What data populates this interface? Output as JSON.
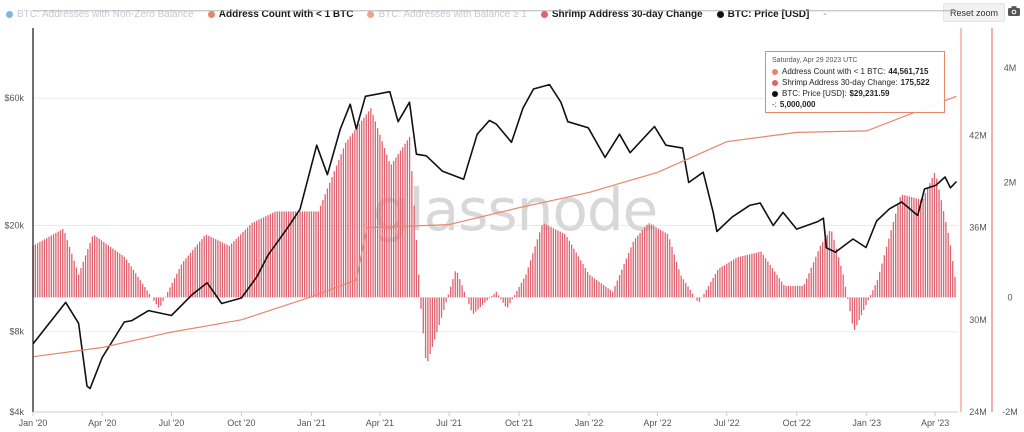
{
  "legend": [
    {
      "label": "BTC: Addresses with Non-Zero Balance",
      "color": "#7cb5ec",
      "active": false
    },
    {
      "label": "Address Count with < 1 BTC",
      "color": "#e8866c",
      "active": true
    },
    {
      "label": "BTC: Addresses with Balance ≥ 1",
      "color": "#f4a08a",
      "active": false
    },
    {
      "label": "Shrimp Address 30-day Change",
      "color": "#e0606e",
      "active": true
    },
    {
      "label": "BTC: Price [USD]",
      "color": "#111111",
      "active": true
    }
  ],
  "legend_extra": "-",
  "reset_zoom": "Reset zoom",
  "watermark": "glassnode",
  "tooltip": {
    "date": "Saturday, Apr 29 2023 UTC",
    "rows": [
      {
        "label": "Address Count with < 1 BTC:",
        "value": "44,561,715",
        "color": "#e8866c"
      },
      {
        "label": "Shrimp Address 30-day Change:",
        "value": "175,522",
        "color": "#e0606e"
      },
      {
        "label": "BTC: Price [USD]:",
        "value": "$29,231.59",
        "color": "#111111"
      },
      {
        "label": "-:",
        "value": "5,000,000",
        "color": ""
      }
    ]
  },
  "chart_data": {
    "type": "line",
    "x_tick_labels": [
      "Jan '20",
      "Apr '20",
      "Jul '20",
      "Oct '20",
      "Jan '21",
      "Apr '21",
      "Jul '21",
      "Oct '21",
      "Jan '22",
      "Apr '22",
      "Jul '22",
      "Oct '22",
      "Jan '23",
      "Apr '23"
    ],
    "x_range": [
      "2020-01-01",
      "2023-05-01"
    ],
    "y_axes": {
      "price": {
        "ticks": [
          "$4k",
          "$8k",
          "$20k",
          "$60k"
        ],
        "scale": "log",
        "range": [
          4000,
          110000
        ]
      },
      "address_count": {
        "ticks": [
          "24M",
          "30M",
          "36M",
          "42M"
        ],
        "range": [
          24000000,
          49000000
        ]
      },
      "change": {
        "ticks": [
          "-2M",
          "0",
          "2M",
          "4M"
        ],
        "range": [
          -2000000,
          4700000
        ]
      }
    },
    "reference_line": {
      "name": "-",
      "value": 5000000
    },
    "series": [
      {
        "name": "BTC: Price [USD]",
        "axis": "price",
        "color": "#111111",
        "points": [
          [
            "2020-01-01",
            7200
          ],
          [
            "2020-02-13",
            10300
          ],
          [
            "2020-03-01",
            8600
          ],
          [
            "2020-03-12",
            5000
          ],
          [
            "2020-03-16",
            4900
          ],
          [
            "2020-04-01",
            6400
          ],
          [
            "2020-04-30",
            8700
          ],
          [
            "2020-05-10",
            8800
          ],
          [
            "2020-06-01",
            9600
          ],
          [
            "2020-07-01",
            9200
          ],
          [
            "2020-07-28",
            11000
          ],
          [
            "2020-08-17",
            12200
          ],
          [
            "2020-09-05",
            10200
          ],
          [
            "2020-10-01",
            10700
          ],
          [
            "2020-10-21",
            12800
          ],
          [
            "2020-11-05",
            15500
          ],
          [
            "2020-11-30",
            19500
          ],
          [
            "2020-12-17",
            23000
          ],
          [
            "2021-01-08",
            40000
          ],
          [
            "2021-01-22",
            31000
          ],
          [
            "2021-02-08",
            46000
          ],
          [
            "2021-02-21",
            57000
          ],
          [
            "2021-03-01",
            46000
          ],
          [
            "2021-03-13",
            61000
          ],
          [
            "2021-04-14",
            63500
          ],
          [
            "2021-04-25",
            49000
          ],
          [
            "2021-05-10",
            58000
          ],
          [
            "2021-05-19",
            37000
          ],
          [
            "2021-06-01",
            36500
          ],
          [
            "2021-06-22",
            32000
          ],
          [
            "2021-07-20",
            29800
          ],
          [
            "2021-08-07",
            44000
          ],
          [
            "2021-08-23",
            49500
          ],
          [
            "2021-09-01",
            48000
          ],
          [
            "2021-09-21",
            41000
          ],
          [
            "2021-10-06",
            55000
          ],
          [
            "2021-10-20",
            65000
          ],
          [
            "2021-11-10",
            67500
          ],
          [
            "2021-11-25",
            58000
          ],
          [
            "2021-12-04",
            49000
          ],
          [
            "2021-12-31",
            46500
          ],
          [
            "2022-01-22",
            36000
          ],
          [
            "2022-02-10",
            44000
          ],
          [
            "2022-02-24",
            37500
          ],
          [
            "2022-03-28",
            47000
          ],
          [
            "2022-04-12",
            40000
          ],
          [
            "2022-05-04",
            39000
          ],
          [
            "2022-05-12",
            29000
          ],
          [
            "2022-05-31",
            31700
          ],
          [
            "2022-06-13",
            22500
          ],
          [
            "2022-06-18",
            19000
          ],
          [
            "2022-07-08",
            21500
          ],
          [
            "2022-07-31",
            23800
          ],
          [
            "2022-08-14",
            24300
          ],
          [
            "2022-08-31",
            20000
          ],
          [
            "2022-09-13",
            22400
          ],
          [
            "2022-10-01",
            19400
          ],
          [
            "2022-10-29",
            20700
          ],
          [
            "2022-11-05",
            21300
          ],
          [
            "2022-11-09",
            16500
          ],
          [
            "2022-11-21",
            15900
          ],
          [
            "2022-12-14",
            17800
          ],
          [
            "2022-12-31",
            16550
          ],
          [
            "2023-01-14",
            20800
          ],
          [
            "2023-01-31",
            23100
          ],
          [
            "2023-02-16",
            24500
          ],
          [
            "2023-03-09",
            21800
          ],
          [
            "2023-03-18",
            27400
          ],
          [
            "2023-04-02",
            28300
          ],
          [
            "2023-04-14",
            30400
          ],
          [
            "2023-04-21",
            27700
          ],
          [
            "2023-04-29",
            29231.59
          ]
        ]
      },
      {
        "name": "Address Count with < 1 BTC",
        "axis": "address_count",
        "color": "#e8866c",
        "points": [
          [
            "2020-01-01",
            27600000
          ],
          [
            "2020-04-01",
            28200000
          ],
          [
            "2020-07-01",
            29200000
          ],
          [
            "2020-10-01",
            30000000
          ],
          [
            "2021-01-01",
            31500000
          ],
          [
            "2021-03-01",
            32600000
          ],
          [
            "2021-03-15",
            36000000
          ],
          [
            "2021-07-01",
            36200000
          ],
          [
            "2021-10-01",
            37300000
          ],
          [
            "2022-01-01",
            38300000
          ],
          [
            "2022-04-01",
            39600000
          ],
          [
            "2022-07-01",
            41600000
          ],
          [
            "2022-10-01",
            42200000
          ],
          [
            "2023-01-01",
            42300000
          ],
          [
            "2023-04-29",
            44561715
          ]
        ]
      },
      {
        "name": "Shrimp Address 30-day Change",
        "axis": "change",
        "type": "column",
        "color": "#e0606e",
        "points": [
          [
            "2020-01-01",
            900000
          ],
          [
            "2020-02-10",
            1200000
          ],
          [
            "2020-03-01",
            400000
          ],
          [
            "2020-03-20",
            1100000
          ],
          [
            "2020-05-01",
            700000
          ],
          [
            "2020-06-15",
            -200000
          ],
          [
            "2020-07-15",
            600000
          ],
          [
            "2020-08-15",
            1100000
          ],
          [
            "2020-09-15",
            900000
          ],
          [
            "2020-10-15",
            1300000
          ],
          [
            "2020-11-15",
            1500000
          ],
          [
            "2020-12-15",
            1500000
          ],
          [
            "2021-01-10",
            1500000
          ],
          [
            "2021-02-15",
            2700000
          ],
          [
            "2021-03-20",
            3300000
          ],
          [
            "2021-04-15",
            2300000
          ],
          [
            "2021-05-10",
            2800000
          ],
          [
            "2021-05-25",
            -200000
          ],
          [
            "2021-06-01",
            -1200000
          ],
          [
            "2021-06-20",
            -400000
          ],
          [
            "2021-07-10",
            500000
          ],
          [
            "2021-08-01",
            -300000
          ],
          [
            "2021-09-01",
            100000
          ],
          [
            "2021-09-15",
            -200000
          ],
          [
            "2021-10-10",
            400000
          ],
          [
            "2021-11-01",
            1300000
          ],
          [
            "2021-12-01",
            1100000
          ],
          [
            "2022-01-01",
            400000
          ],
          [
            "2022-02-01",
            100000
          ],
          [
            "2022-03-01",
            1000000
          ],
          [
            "2022-03-20",
            1300000
          ],
          [
            "2022-04-15",
            1100000
          ],
          [
            "2022-05-01",
            400000
          ],
          [
            "2022-05-25",
            -100000
          ],
          [
            "2022-06-20",
            500000
          ],
          [
            "2022-07-15",
            700000
          ],
          [
            "2022-08-15",
            800000
          ],
          [
            "2022-09-15",
            200000
          ],
          [
            "2022-10-10",
            200000
          ],
          [
            "2022-11-01",
            900000
          ],
          [
            "2022-11-15",
            1200000
          ],
          [
            "2022-12-01",
            400000
          ],
          [
            "2022-12-15",
            -600000
          ],
          [
            "2023-01-15",
            300000
          ],
          [
            "2023-02-15",
            1800000
          ],
          [
            "2023-03-15",
            1700000
          ],
          [
            "2023-04-01",
            2200000
          ],
          [
            "2023-04-20",
            1000000
          ],
          [
            "2023-04-29",
            175522
          ]
        ]
      }
    ]
  }
}
